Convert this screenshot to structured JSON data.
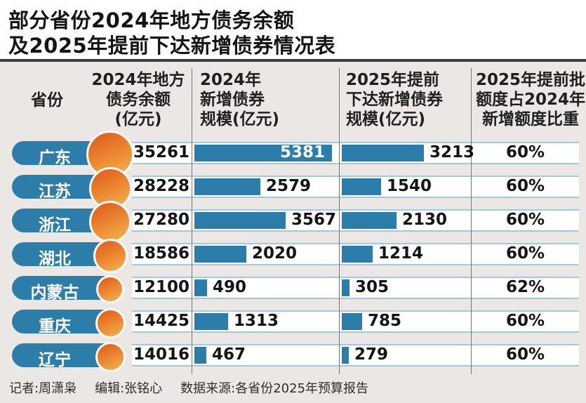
{
  "title": {
    "line1": "部分省份2024年地方债务余额",
    "line2": "及2025年提前下达新增债券情况表"
  },
  "table": {
    "headers": {
      "province": "省份",
      "debt_balance": [
        "2024年地方",
        "债务余额",
        "(亿元)"
      ],
      "new_bonds_2024": [
        "2024年",
        "新增债券",
        "规模(亿元)"
      ],
      "new_bonds_2025": [
        "2025年提前",
        "下达新增债券",
        "规模(亿元)"
      ],
      "ratio": [
        "2025年提前批",
        "额度占2024年",
        "新增额度比重"
      ]
    },
    "rows": [
      {
        "province": "广东",
        "debt_balance": "35261",
        "new_bonds_2024": "5381",
        "new_bonds_2025": "3213",
        "ratio": "60%"
      },
      {
        "province": "江苏",
        "debt_balance": "28228",
        "new_bonds_2024": "2579",
        "new_bonds_2025": "1540",
        "ratio": "60%"
      },
      {
        "province": "浙江",
        "debt_balance": "27280",
        "new_bonds_2024": "3567",
        "new_bonds_2025": "2130",
        "ratio": "60%"
      },
      {
        "province": "湖北",
        "debt_balance": "18586",
        "new_bonds_2024": "2020",
        "new_bonds_2025": "1214",
        "ratio": "60%"
      },
      {
        "province": "内蒙古",
        "debt_balance": "12100",
        "new_bonds_2024": "490",
        "new_bonds_2025": "305",
        "ratio": "62%"
      },
      {
        "province": "重庆",
        "debt_balance": "14425",
        "new_bonds_2024": "1313",
        "new_bonds_2025": "785",
        "ratio": "60%"
      },
      {
        "province": "辽宁",
        "debt_balance": "14016",
        "new_bonds_2024": "467",
        "new_bonds_2025": "279",
        "ratio": "60%"
      }
    ]
  },
  "footer": {
    "reporter": "记者:周潇枭",
    "editor": "编辑:张铭心",
    "source": "数据来源:各省份2025年预算报告"
  },
  "colors": {
    "bar_blue": "#2d7dab",
    "row_border_blue": "#a6c7dc",
    "circle_orange_dark": "#e05f1e",
    "circle_orange_light": "#f4b14e",
    "background": "#eae7e4",
    "title_rule": "#3d3d3d"
  },
  "chart_data": {
    "type": "table",
    "title": "部分省份2024年地方债务余额及2025年提前下达新增债券情况表",
    "categories": [
      "广东",
      "江苏",
      "浙江",
      "湖北",
      "内蒙古",
      "重庆",
      "辽宁"
    ],
    "series": [
      {
        "name": "2024年地方债务余额(亿元)",
        "render": "circle-size",
        "values": [
          35261,
          28228,
          27280,
          18586,
          12100,
          14425,
          14016
        ]
      },
      {
        "name": "2024年新增债券规模(亿元)",
        "render": "bar",
        "values": [
          5381,
          2579,
          3567,
          2020,
          490,
          1313,
          467
        ]
      },
      {
        "name": "2025年提前下达新增债券规模(亿元)",
        "render": "bar",
        "values": [
          3213,
          1540,
          2130,
          1214,
          305,
          785,
          279
        ]
      },
      {
        "name": "2025年提前批额度占2024年新增额度比重",
        "render": "text",
        "values": [
          "60%",
          "60%",
          "60%",
          "60%",
          "62%",
          "60%",
          "60%"
        ]
      }
    ],
    "layout_hints": {
      "bar_scale_shared": true,
      "legend": "none",
      "grid": "table-lines"
    }
  }
}
